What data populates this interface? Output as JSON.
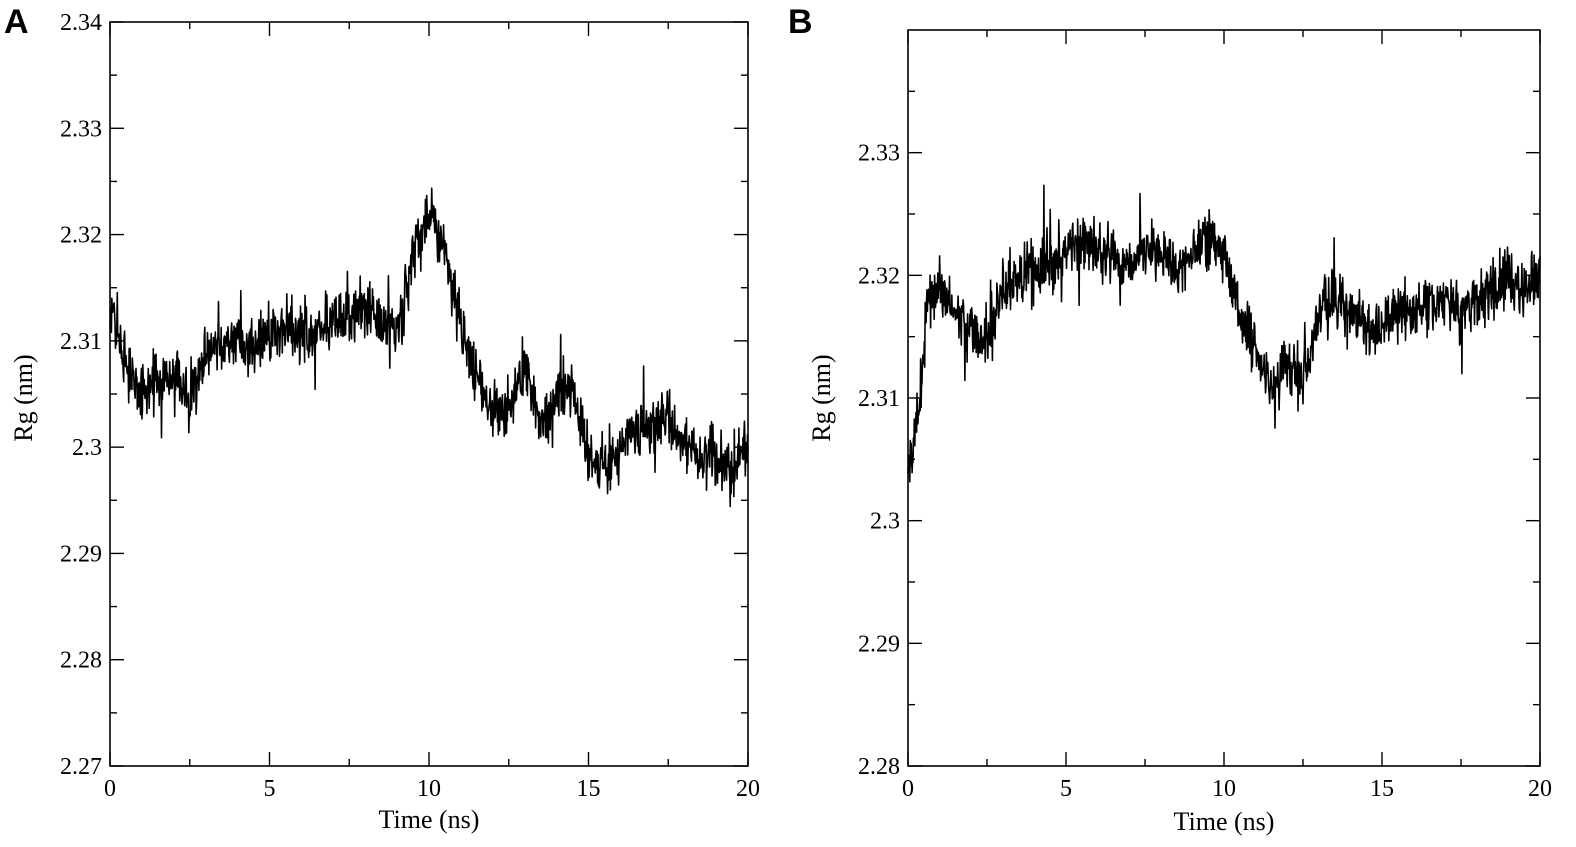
{
  "chart_data": [
    {
      "type": "line",
      "panel_label": "A",
      "xlabel": "Time (ns)",
      "ylabel": "Rg (nm)",
      "xlim": [
        0,
        20
      ],
      "ylim": [
        2.27,
        2.34
      ],
      "x_ticks": [
        "0",
        "5",
        "10",
        "15",
        "20"
      ],
      "y_ticks": [
        "2.27",
        "2.28",
        "2.29",
        "2.3",
        "2.31",
        "2.32",
        "2.33",
        "2.34"
      ],
      "x_tick_values": [
        0,
        5,
        10,
        15,
        20
      ],
      "y_tick_values": [
        2.27,
        2.28,
        2.29,
        2.3,
        2.31,
        2.32,
        2.33,
        2.34
      ],
      "x_minor_step": 2.5,
      "y_minor_step": 0.005,
      "grid": false,
      "series": [
        {
          "noise": 0.004,
          "x": [
            0,
            0.3,
            0.6,
            1,
            1.5,
            2,
            2.5,
            3,
            3.5,
            4,
            4.5,
            5,
            5.5,
            6,
            6.5,
            7,
            7.5,
            8,
            8.5,
            9,
            9.5,
            10,
            10.5,
            11,
            11.5,
            12,
            12.5,
            13,
            13.5,
            14,
            14.5,
            15,
            15.5,
            16,
            16.5,
            17,
            17.5,
            18,
            18.5,
            19,
            19.5,
            20
          ],
          "y": [
            2.313,
            2.31,
            2.307,
            2.305,
            2.306,
            2.307,
            2.304,
            2.309,
            2.31,
            2.31,
            2.309,
            2.31,
            2.311,
            2.311,
            2.311,
            2.312,
            2.312,
            2.313,
            2.312,
            2.311,
            2.318,
            2.322,
            2.319,
            2.311,
            2.307,
            2.303,
            2.304,
            2.308,
            2.302,
            2.305,
            2.306,
            2.299,
            2.298,
            2.3,
            2.302,
            2.302,
            2.303,
            2.3,
            2.299,
            2.299,
            2.298,
            2.3
          ]
        }
      ]
    },
    {
      "type": "line",
      "panel_label": "B",
      "xlabel": "Time (ns)",
      "ylabel": "Rg (nm)",
      "xlim": [
        0,
        20
      ],
      "ylim": [
        2.28,
        2.34
      ],
      "x_ticks": [
        "0",
        "5",
        "10",
        "15",
        "20"
      ],
      "y_ticks": [
        "2.28",
        "2.29",
        "2.3",
        "2.31",
        "2.32",
        "2.33"
      ],
      "x_tick_values": [
        0,
        5,
        10,
        15,
        20
      ],
      "y_tick_values": [
        2.28,
        2.29,
        2.3,
        2.31,
        2.32,
        2.33
      ],
      "x_minor_step": 2.5,
      "y_minor_step": 0.005,
      "grid": false,
      "series": [
        {
          "noise": 0.0035,
          "x": [
            0,
            0.2,
            0.4,
            0.6,
            1,
            1.5,
            2,
            2.5,
            3,
            3.5,
            4,
            4.5,
            5,
            5.5,
            6,
            6.5,
            7,
            7.5,
            8,
            8.5,
            9,
            9.5,
            10,
            10.5,
            11,
            11.5,
            12,
            12.5,
            13,
            13.5,
            14,
            14.5,
            15,
            15.5,
            16,
            16.5,
            17,
            17.5,
            18,
            18.5,
            19,
            19.5,
            20
          ],
          "y": [
            2.304,
            2.307,
            2.31,
            2.318,
            2.319,
            2.317,
            2.316,
            2.314,
            2.319,
            2.32,
            2.32,
            2.321,
            2.322,
            2.323,
            2.322,
            2.321,
            2.321,
            2.322,
            2.322,
            2.32,
            2.322,
            2.323,
            2.322,
            2.317,
            2.314,
            2.31,
            2.313,
            2.311,
            2.317,
            2.318,
            2.317,
            2.316,
            2.316,
            2.317,
            2.317,
            2.318,
            2.318,
            2.317,
            2.318,
            2.319,
            2.32,
            2.319,
            2.32
          ]
        }
      ]
    }
  ]
}
